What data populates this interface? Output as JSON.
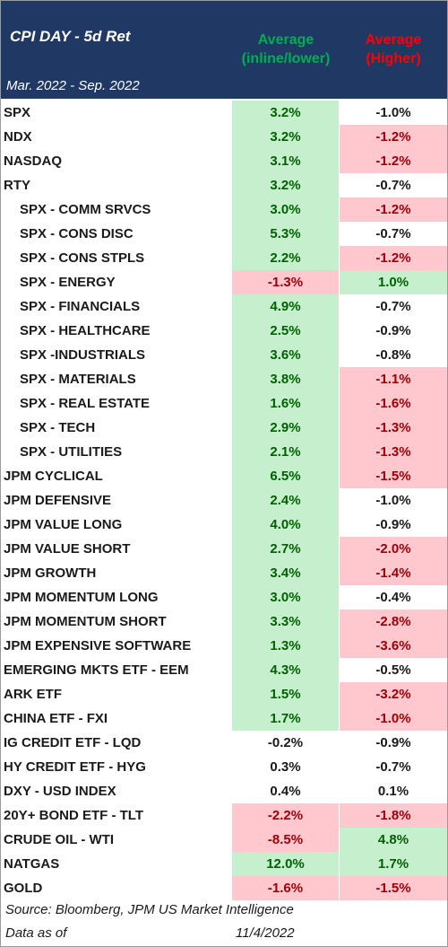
{
  "header": {
    "title": "CPI DAY - 5d Ret",
    "date_range": "Mar. 2022 - Sep. 2022",
    "col_inline_line1": "Average",
    "col_inline_line2": "(inline/lower)",
    "col_higher_line1": "Average",
    "col_higher_line2": "(Higher)"
  },
  "colors": {
    "header_bg": "#1f3864",
    "green_fill": "#c6efce",
    "red_fill": "#ffc7ce",
    "green_text": "#00b050",
    "red_text": "#ff0000"
  },
  "rows": [
    {
      "label": "SPX",
      "indent": false,
      "inline": "3.2%",
      "inline_color": "green",
      "higher": "-1.0%",
      "higher_color": "plain"
    },
    {
      "label": "NDX",
      "indent": false,
      "inline": "3.2%",
      "inline_color": "green",
      "higher": "-1.2%",
      "higher_color": "red"
    },
    {
      "label": "NASDAQ",
      "indent": false,
      "inline": "3.1%",
      "inline_color": "green",
      "higher": "-1.2%",
      "higher_color": "red"
    },
    {
      "label": "RTY",
      "indent": false,
      "inline": "3.2%",
      "inline_color": "green",
      "higher": "-0.7%",
      "higher_color": "plain"
    },
    {
      "label": "SPX - COMM SRVCS",
      "indent": true,
      "inline": "3.0%",
      "inline_color": "green",
      "higher": "-1.2%",
      "higher_color": "red"
    },
    {
      "label": "SPX - CONS DISC",
      "indent": true,
      "inline": "5.3%",
      "inline_color": "green",
      "higher": "-0.7%",
      "higher_color": "plain"
    },
    {
      "label": "SPX - CONS STPLS",
      "indent": true,
      "inline": "2.2%",
      "inline_color": "green",
      "higher": "-1.2%",
      "higher_color": "red"
    },
    {
      "label": "SPX - ENERGY",
      "indent": true,
      "inline": "-1.3%",
      "inline_color": "red",
      "higher": "1.0%",
      "higher_color": "green"
    },
    {
      "label": "SPX - FINANCIALS",
      "indent": true,
      "inline": "4.9%",
      "inline_color": "green",
      "higher": "-0.7%",
      "higher_color": "plain"
    },
    {
      "label": "SPX - HEALTHCARE",
      "indent": true,
      "inline": "2.5%",
      "inline_color": "green",
      "higher": "-0.9%",
      "higher_color": "plain"
    },
    {
      "label": "SPX -INDUSTRIALS",
      "indent": true,
      "inline": "3.6%",
      "inline_color": "green",
      "higher": "-0.8%",
      "higher_color": "plain"
    },
    {
      "label": "SPX - MATERIALS",
      "indent": true,
      "inline": "3.8%",
      "inline_color": "green",
      "higher": "-1.1%",
      "higher_color": "red"
    },
    {
      "label": "SPX - REAL ESTATE",
      "indent": true,
      "inline": "1.6%",
      "inline_color": "green",
      "higher": "-1.6%",
      "higher_color": "red"
    },
    {
      "label": "SPX - TECH",
      "indent": true,
      "inline": "2.9%",
      "inline_color": "green",
      "higher": "-1.3%",
      "higher_color": "red"
    },
    {
      "label": "SPX - UTILITIES",
      "indent": true,
      "inline": "2.1%",
      "inline_color": "green",
      "higher": "-1.3%",
      "higher_color": "red"
    },
    {
      "label": "JPM CYCLICAL",
      "indent": false,
      "inline": "6.5%",
      "inline_color": "green",
      "higher": "-1.5%",
      "higher_color": "red"
    },
    {
      "label": "JPM DEFENSIVE",
      "indent": false,
      "inline": "2.4%",
      "inline_color": "green",
      "higher": "-1.0%",
      "higher_color": "plain"
    },
    {
      "label": "JPM VALUE LONG",
      "indent": false,
      "inline": "4.0%",
      "inline_color": "green",
      "higher": "-0.9%",
      "higher_color": "plain"
    },
    {
      "label": "JPM VALUE SHORT",
      "indent": false,
      "inline": "2.7%",
      "inline_color": "green",
      "higher": "-2.0%",
      "higher_color": "red"
    },
    {
      "label": "JPM GROWTH",
      "indent": false,
      "inline": "3.4%",
      "inline_color": "green",
      "higher": "-1.4%",
      "higher_color": "red"
    },
    {
      "label": "JPM MOMENTUM LONG",
      "indent": false,
      "inline": "3.0%",
      "inline_color": "green",
      "higher": "-0.4%",
      "higher_color": "plain"
    },
    {
      "label": "JPM MOMENTUM SHORT",
      "indent": false,
      "inline": "3.3%",
      "inline_color": "green",
      "higher": "-2.8%",
      "higher_color": "red"
    },
    {
      "label": "JPM EXPENSIVE SOFTWARE",
      "indent": false,
      "inline": "1.3%",
      "inline_color": "green",
      "higher": "-3.6%",
      "higher_color": "red"
    },
    {
      "label": "EMERGING MKTS ETF - EEM",
      "indent": false,
      "inline": "4.3%",
      "inline_color": "green",
      "higher": "-0.5%",
      "higher_color": "plain"
    },
    {
      "label": "ARK ETF",
      "indent": false,
      "inline": "1.5%",
      "inline_color": "green",
      "higher": "-3.2%",
      "higher_color": "red"
    },
    {
      "label": "CHINA ETF - FXI",
      "indent": false,
      "inline": "1.7%",
      "inline_color": "green",
      "higher": "-1.0%",
      "higher_color": "red"
    },
    {
      "label": "IG CREDIT ETF - LQD",
      "indent": false,
      "inline": "-0.2%",
      "inline_color": "plain",
      "higher": "-0.9%",
      "higher_color": "plain"
    },
    {
      "label": "HY CREDIT ETF - HYG",
      "indent": false,
      "inline": "0.3%",
      "inline_color": "plain",
      "higher": "-0.7%",
      "higher_color": "plain"
    },
    {
      "label": "DXY - USD INDEX",
      "indent": false,
      "inline": "0.4%",
      "inline_color": "plain",
      "higher": "0.1%",
      "higher_color": "plain"
    },
    {
      "label": "20Y+ BOND ETF - TLT",
      "indent": false,
      "inline": "-2.2%",
      "inline_color": "red",
      "higher": "-1.8%",
      "higher_color": "red"
    },
    {
      "label": "CRUDE OIL - WTI",
      "indent": false,
      "inline": "-8.5%",
      "inline_color": "red",
      "higher": "4.8%",
      "higher_color": "green"
    },
    {
      "label": "NATGAS",
      "indent": false,
      "inline": "12.0%",
      "inline_color": "green",
      "higher": "1.7%",
      "higher_color": "green"
    },
    {
      "label": "GOLD",
      "indent": false,
      "inline": "-1.6%",
      "inline_color": "red",
      "higher": "-1.5%",
      "higher_color": "red"
    }
  ],
  "footer": {
    "source": "Source: Bloomberg, JPM US Market Intelligence",
    "data_as_of_label": "Data as of",
    "data_as_of_date": "11/4/2022"
  }
}
